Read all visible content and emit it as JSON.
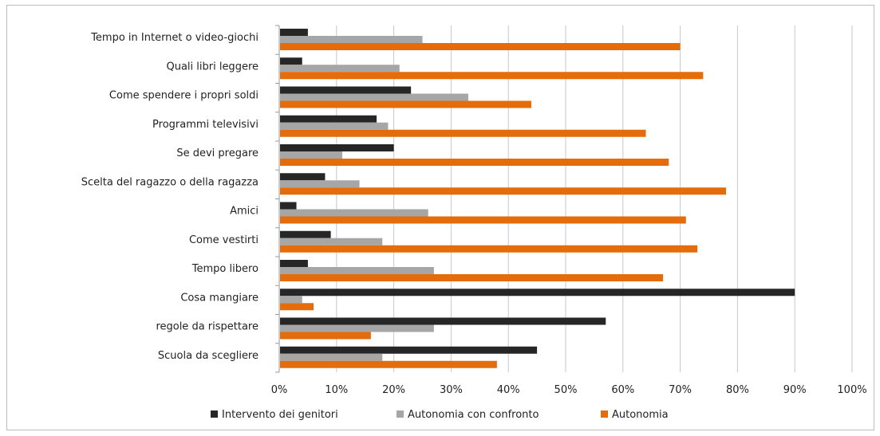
{
  "chart_data": {
    "type": "bar",
    "orientation": "horizontal",
    "title": "",
    "xlabel": "",
    "ylabel": "",
    "xlim": [
      0,
      100
    ],
    "x_ticks": [
      "0%",
      "10%",
      "20%",
      "30%",
      "40%",
      "50%",
      "60%",
      "70%",
      "80%",
      "90%",
      "100%"
    ],
    "grid": true,
    "legend_position": "bottom",
    "categories": [
      "Tempo  in Internet o video-giochi",
      "Quali libri leggere",
      "Come spendere i propri soldi",
      "Programmi televisivi",
      "Se devi pregare",
      "Scelta del ragazzo o della ragazza",
      "Amici",
      "Come vestirti",
      "Tempo libero",
      "Cosa mangiare",
      "regole da rispettare",
      "Scuola da scegliere"
    ],
    "series": [
      {
        "name": "Intervento dei genitori",
        "color": "#262626",
        "values": [
          5,
          4,
          23,
          17,
          20,
          8,
          3,
          9,
          5,
          90,
          57,
          45
        ]
      },
      {
        "name": "Autonomia con confronto",
        "color": "#a6a6a6",
        "values": [
          25,
          21,
          33,
          19,
          11,
          14,
          26,
          18,
          27,
          4,
          27,
          18
        ]
      },
      {
        "name": "Autonomia",
        "color": "#e46c0a",
        "values": [
          70,
          74,
          44,
          64,
          68,
          78,
          71,
          73,
          67,
          6,
          16,
          38
        ]
      }
    ]
  }
}
